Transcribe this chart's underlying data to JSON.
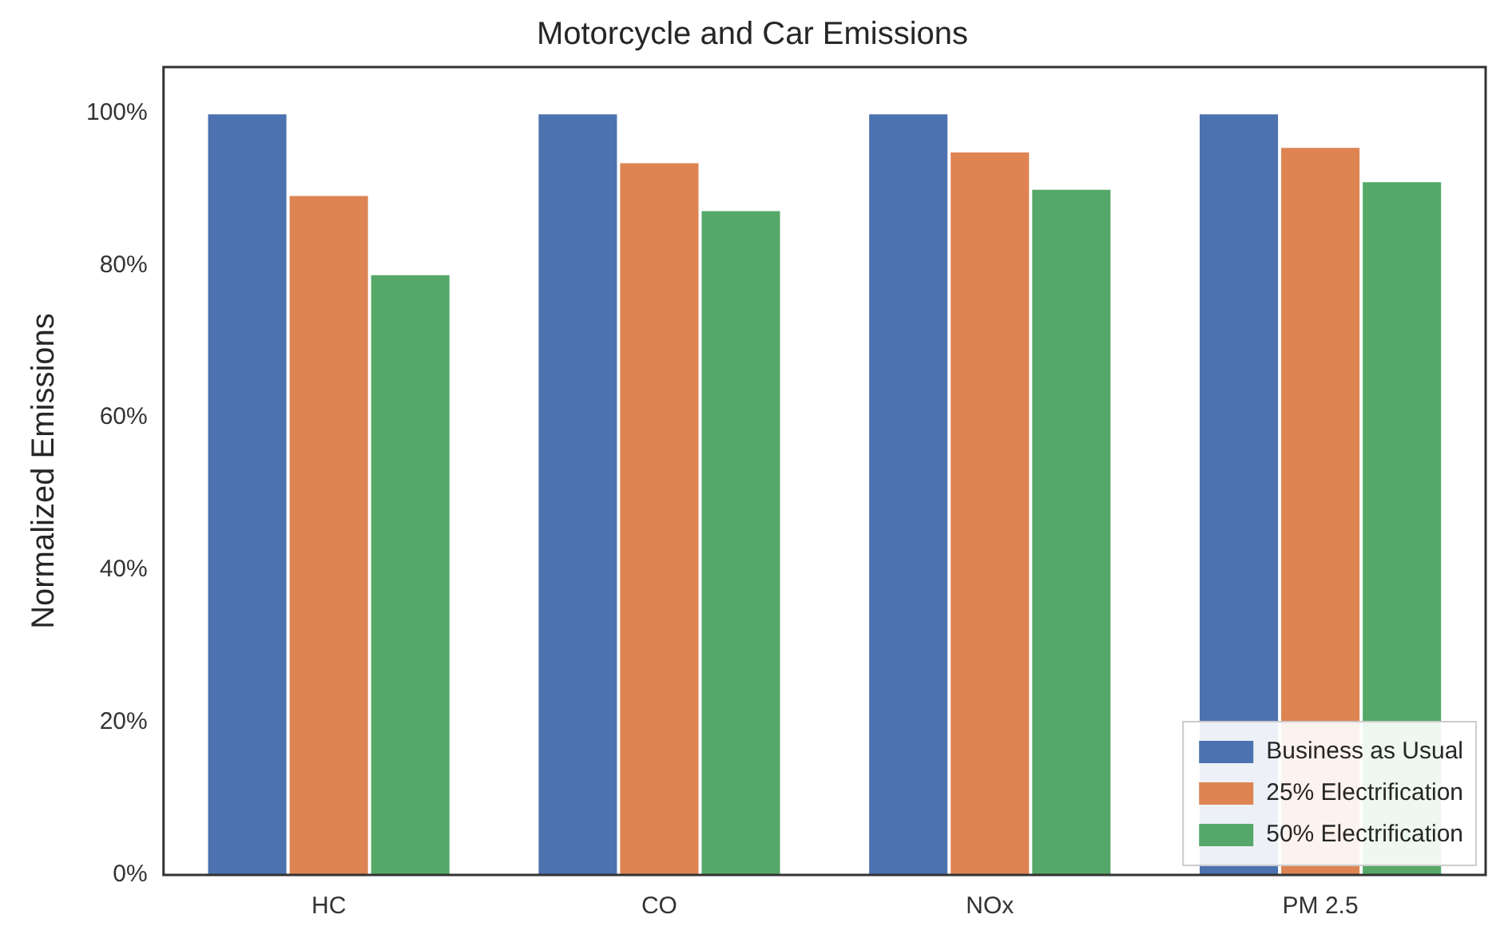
{
  "chart_data": {
    "type": "bar",
    "title": "Motorcycle and Car Emissions",
    "ylabel": "Normalized Emissions",
    "categories": [
      "HC",
      "CO",
      "NOx",
      "PM 2.5"
    ],
    "series": [
      {
        "name": "Business as Usual",
        "color": "#4c72b0",
        "values": [
          100,
          100,
          100,
          100
        ]
      },
      {
        "name": "25% Electrification",
        "color": "#dd8452",
        "values": [
          89.3,
          93.6,
          95,
          95.6
        ]
      },
      {
        "name": "50% Electrification",
        "color": "#55a868",
        "values": [
          78.9,
          87.3,
          90.1,
          91.1
        ]
      }
    ],
    "ylim": [
      0,
      106
    ],
    "yticks": [
      {
        "value": 0,
        "label": "0%"
      },
      {
        "value": 20,
        "label": "20%"
      },
      {
        "value": 40,
        "label": "40%"
      },
      {
        "value": 60,
        "label": "60%"
      },
      {
        "value": 80,
        "label": "80%"
      },
      {
        "value": 100,
        "label": "100%"
      }
    ],
    "grid": false,
    "legend": "bottom right"
  }
}
